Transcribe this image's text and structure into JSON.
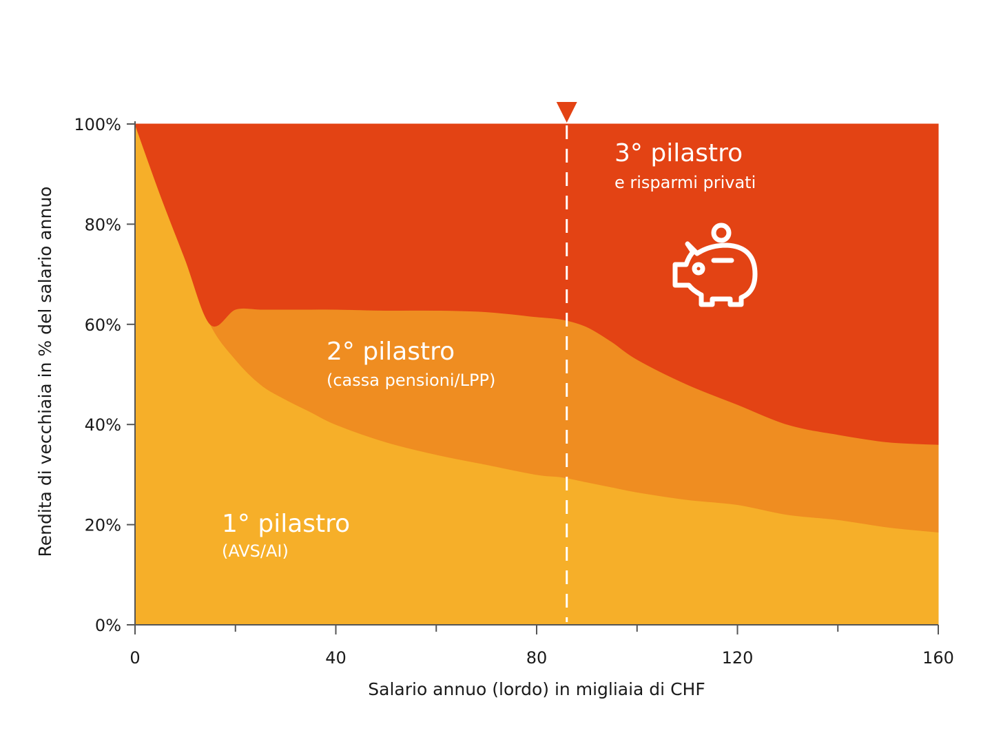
{
  "chart_data": {
    "type": "area",
    "stacked": true,
    "title": "",
    "xlabel": "Salario annuo (lordo) in migliaia di CHF",
    "ylabel": "Rendita di vecchiaia in % del salario annuo",
    "xlim": [
      0,
      160
    ],
    "ylim": [
      0,
      100
    ],
    "x_ticks": [
      "0",
      "40",
      "80",
      "120",
      "160"
    ],
    "x_minor_ticks": [
      20,
      60,
      100,
      140
    ],
    "y_ticks": [
      "0%",
      "20%",
      "40%",
      "60%",
      "80%",
      "100%"
    ],
    "x": [
      0,
      5,
      10,
      15,
      20,
      25,
      30,
      35,
      40,
      50,
      60,
      70,
      80,
      85,
      90,
      95,
      100,
      110,
      120,
      130,
      140,
      150,
      160
    ],
    "series": [
      {
        "name": "1° pilastro",
        "subtitle": "(AVS/AI)",
        "color": "#f6af29",
        "values": [
          100,
          86,
          73,
          60,
          53,
          48,
          45,
          42.5,
          40,
          36.5,
          34,
          32,
          30,
          29.5,
          28.5,
          27.5,
          26.5,
          25,
          24,
          22,
          21,
          19.5,
          18.5
        ]
      },
      {
        "name": "2° pilastro",
        "subtitle": "(cassa pensioni/LPP)",
        "color": "#ef8d21",
        "values": [
          0,
          0,
          0,
          0,
          10,
          15,
          18,
          20.5,
          23,
          26.3,
          28.8,
          30.5,
          31.5,
          31.5,
          31,
          29,
          26.5,
          23,
          20,
          18,
          17,
          17,
          17.5
        ]
      },
      {
        "name": "3° pilastro",
        "subtitle": "e risparmi privati",
        "color": "#e34314",
        "values": [
          0,
          14,
          27,
          40,
          37,
          37,
          37,
          37,
          37,
          37.2,
          37.2,
          37.5,
          38.5,
          39,
          40.5,
          43.5,
          47,
          52,
          56,
          60,
          62,
          63.5,
          64
        ]
      }
    ],
    "marker": {
      "x": 86,
      "style": "dashed-vertical-line-with-triangle",
      "color": "#e34314",
      "line_color": "#ffffff"
    },
    "icon": "piggy-bank-icon",
    "grid": false,
    "legend": "inline-labels"
  }
}
